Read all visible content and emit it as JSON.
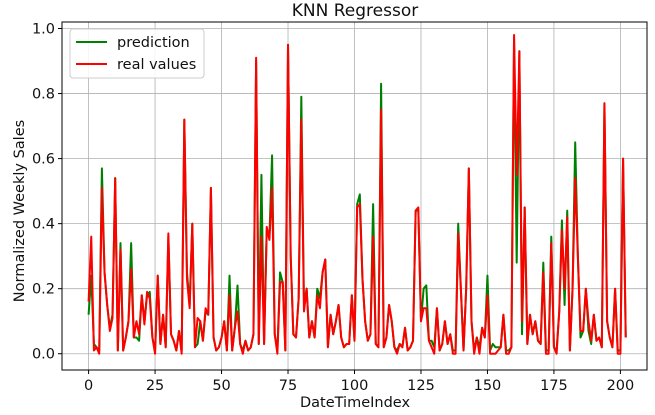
{
  "chart_data": {
    "type": "line",
    "title": "KNN Regressor",
    "xlabel": "DateTimeIndex",
    "ylabel": "Normalized Weekly Sales",
    "xlim": [
      -10,
      210
    ],
    "ylim": [
      -0.05,
      1.02
    ],
    "xticks": [
      0,
      25,
      50,
      75,
      100,
      125,
      150,
      175,
      200
    ],
    "xtick_labels": [
      "0",
      "25",
      "50",
      "75",
      "100",
      "125",
      "150",
      "175",
      "200"
    ],
    "yticks": [
      0.0,
      0.2,
      0.4,
      0.6,
      0.8,
      1.0
    ],
    "ytick_labels": [
      "0.0",
      "0.2",
      "0.4",
      "0.6",
      "0.8",
      "1.0"
    ],
    "grid": true,
    "legend_position": "upper left",
    "series": [
      {
        "name": "prediction",
        "color": "#008000",
        "values": [
          0.12,
          0.24,
          0.03,
          0.02,
          0.01,
          0.57,
          0.25,
          0.15,
          0.08,
          0.12,
          0.54,
          0.01,
          0.34,
          0.01,
          0.05,
          0.1,
          0.34,
          0.05,
          0.05,
          0.04,
          0.18,
          0.1,
          0.18,
          0.19,
          0.05,
          0.01,
          0.24,
          0.03,
          0.12,
          0.02,
          0.36,
          0.06,
          0.04,
          0.01,
          0.07,
          0.01,
          0.72,
          0.25,
          0.15,
          0.4,
          0.02,
          0.03,
          0.1,
          0.04,
          0.13,
          0.12,
          0.51,
          0.05,
          0.01,
          0.02,
          0.05,
          0.1,
          0.01,
          0.24,
          0.01,
          0.08,
          0.21,
          0.03,
          0.01,
          0.04,
          0.01,
          0.02,
          0.06,
          0.9,
          0.03,
          0.55,
          0.03,
          0.38,
          0.36,
          0.61,
          0.06,
          0.01,
          0.25,
          0.22,
          0.01,
          0.95,
          0.3,
          0.06,
          0.05,
          0.17,
          0.79,
          0.15,
          0.2,
          0.05,
          0.1,
          0.05,
          0.2,
          0.17,
          0.25,
          0.29,
          0.02,
          0.12,
          0.06,
          0.1,
          0.15,
          0.05,
          0.02,
          0.03,
          0.03,
          0.18,
          0.04,
          0.46,
          0.49,
          0.23,
          0.1,
          0.04,
          0.06,
          0.46,
          0.03,
          0.02,
          0.83,
          0.02,
          0.05,
          0.15,
          0.1,
          0.02,
          0.01,
          0.03,
          0.02,
          0.08,
          0.01,
          0.02,
          0.04,
          0.44,
          0.44,
          0.1,
          0.2,
          0.21,
          0.04,
          0.04,
          0.02,
          0.14,
          0.01,
          0.03,
          0.1,
          0.03,
          0.06,
          0.01,
          0.01,
          0.4,
          0.2,
          0.01,
          0.2,
          0.57,
          0.1,
          0.01,
          0.05,
          0.02,
          0.08,
          0.05,
          0.24,
          0.01,
          0.03,
          0.02,
          0.02,
          0.02,
          0.12,
          0.01,
          0.01,
          0.02,
          0.97,
          0.28,
          0.93,
          0.06,
          0.45,
          0.03,
          0.12,
          0.06,
          0.1,
          0.04,
          0.03,
          0.28,
          0.01,
          0.01,
          0.36,
          0.02,
          0.01,
          0.13,
          0.41,
          0.15,
          0.44,
          0.01,
          0.2,
          0.65,
          0.3,
          0.05,
          0.07,
          0.2,
          0.07,
          0.03,
          0.12,
          0.04,
          0.05,
          0.02,
          0.77,
          0.1,
          0.05,
          0.02,
          0.2,
          0.01,
          0.01,
          0.6,
          0.05
        ],
        "line_width": 2
      },
      {
        "name": "real values",
        "color": "#ff0000",
        "values": [
          0.16,
          0.36,
          0.01,
          0.02,
          0.0,
          0.51,
          0.25,
          0.15,
          0.07,
          0.11,
          0.54,
          0.01,
          0.32,
          0.01,
          0.05,
          0.1,
          0.26,
          0.05,
          0.1,
          0.06,
          0.18,
          0.09,
          0.19,
          0.17,
          0.05,
          0.0,
          0.24,
          0.03,
          0.12,
          0.02,
          0.37,
          0.06,
          0.04,
          0.01,
          0.07,
          0.0,
          0.72,
          0.23,
          0.14,
          0.4,
          0.02,
          0.11,
          0.1,
          0.04,
          0.14,
          0.12,
          0.51,
          0.05,
          0.01,
          0.02,
          0.05,
          0.1,
          0.01,
          0.18,
          0.01,
          0.08,
          0.13,
          0.03,
          0.0,
          0.04,
          0.01,
          0.02,
          0.06,
          0.91,
          0.03,
          0.36,
          0.03,
          0.39,
          0.35,
          0.51,
          0.06,
          0.0,
          0.22,
          0.22,
          0.01,
          0.95,
          0.3,
          0.06,
          0.05,
          0.17,
          0.72,
          0.13,
          0.2,
          0.05,
          0.1,
          0.05,
          0.18,
          0.14,
          0.25,
          0.29,
          0.02,
          0.12,
          0.06,
          0.1,
          0.15,
          0.05,
          0.02,
          0.03,
          0.03,
          0.18,
          0.04,
          0.45,
          0.46,
          0.23,
          0.1,
          0.04,
          0.06,
          0.36,
          0.03,
          0.02,
          0.75,
          0.02,
          0.05,
          0.15,
          0.1,
          0.02,
          0.0,
          0.03,
          0.02,
          0.08,
          0.01,
          0.02,
          0.04,
          0.44,
          0.45,
          0.1,
          0.14,
          0.14,
          0.04,
          0.02,
          0.0,
          0.14,
          0.01,
          0.03,
          0.1,
          0.03,
          0.06,
          0.0,
          0.0,
          0.37,
          0.2,
          0.01,
          0.2,
          0.57,
          0.1,
          0.0,
          0.05,
          0.0,
          0.08,
          0.05,
          0.18,
          0.0,
          0.0,
          0.0,
          0.01,
          0.02,
          0.12,
          0.0,
          0.0,
          0.02,
          0.98,
          0.55,
          0.93,
          0.1,
          0.45,
          0.03,
          0.12,
          0.06,
          0.1,
          0.04,
          0.03,
          0.25,
          0.0,
          0.0,
          0.34,
          0.02,
          0.0,
          0.13,
          0.38,
          0.2,
          0.42,
          0.01,
          0.2,
          0.54,
          0.3,
          0.07,
          0.07,
          0.2,
          0.1,
          0.04,
          0.12,
          0.04,
          0.05,
          0.02,
          0.77,
          0.1,
          0.05,
          0.02,
          0.2,
          0.0,
          0.0,
          0.6,
          0.05
        ],
        "line_width": 2
      }
    ]
  }
}
